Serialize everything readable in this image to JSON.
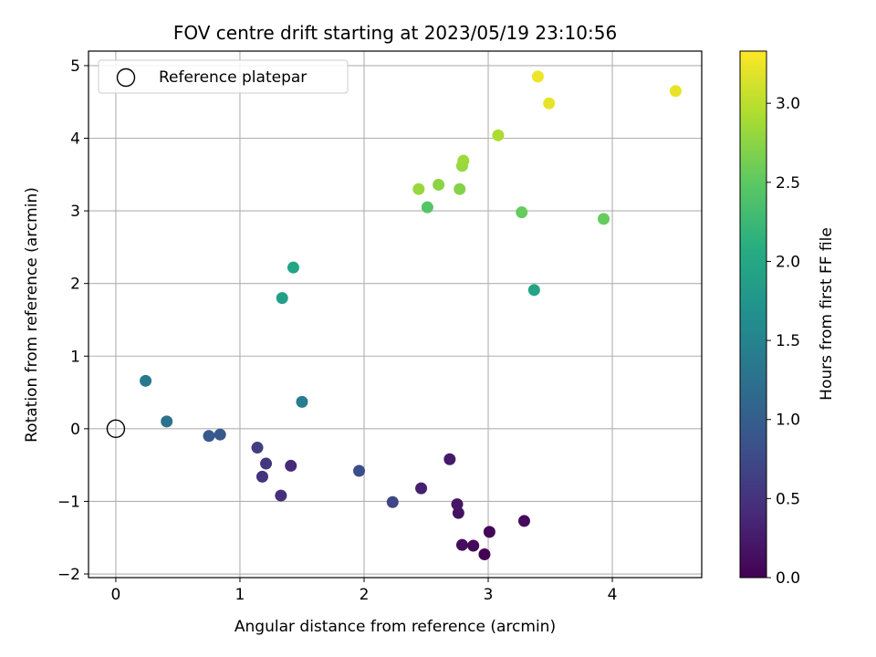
{
  "chart_data": {
    "type": "scatter",
    "title": "FOV centre drift starting at 2023/05/19 23:10:56",
    "xlabel": "Angular distance from reference (arcmin)",
    "ylabel": "Rotation from reference (arcmin)",
    "xlim": [
      -0.22,
      4.72
    ],
    "ylim": [
      -2.05,
      5.2
    ],
    "xticks": [
      0,
      1,
      2,
      3,
      4
    ],
    "xtick_labels": [
      "0",
      "1",
      "2",
      "3",
      "4"
    ],
    "yticks": [
      -2,
      -1,
      0,
      1,
      2,
      3,
      4,
      5
    ],
    "ytick_labels": [
      "−2",
      "−1",
      "0",
      "1",
      "2",
      "3",
      "4",
      "5"
    ],
    "grid": true,
    "legend": {
      "placement": "top-left",
      "entries": [
        {
          "label": "Reference platepar",
          "marker": "open-circle",
          "x": 0,
          "y": 0
        }
      ]
    },
    "colorbar": {
      "label": "Hours from first FF file",
      "range": [
        0.0,
        3.33
      ],
      "ticks": [
        0.0,
        0.5,
        1.0,
        1.5,
        2.0,
        2.5,
        3.0
      ],
      "tick_labels": [
        "0.0",
        "0.5",
        "1.0",
        "1.5",
        "2.0",
        "2.5",
        "3.0"
      ],
      "colormap": "viridis"
    },
    "series": [
      {
        "points": [
          {
            "x": 2.97,
            "y": -1.73,
            "c": 0.0
          },
          {
            "x": 3.01,
            "y": -1.42,
            "c": 0.05
          },
          {
            "x": 2.88,
            "y": -1.61,
            "c": 0.08
          },
          {
            "x": 2.79,
            "y": -1.6,
            "c": 0.12
          },
          {
            "x": 3.29,
            "y": -1.27,
            "c": 0.1
          },
          {
            "x": 2.76,
            "y": -1.16,
            "c": 0.16
          },
          {
            "x": 2.75,
            "y": -1.04,
            "c": 0.2
          },
          {
            "x": 2.69,
            "y": -0.42,
            "c": 0.24
          },
          {
            "x": 2.46,
            "y": -0.82,
            "c": 0.3
          },
          {
            "x": 1.41,
            "y": -0.51,
            "c": 0.4
          },
          {
            "x": 1.33,
            "y": -0.92,
            "c": 0.45
          },
          {
            "x": 1.18,
            "y": -0.66,
            "c": 0.5
          },
          {
            "x": 1.21,
            "y": -0.48,
            "c": 0.55
          },
          {
            "x": 1.14,
            "y": -0.26,
            "c": 0.62
          },
          {
            "x": 2.23,
            "y": -1.01,
            "c": 0.7
          },
          {
            "x": 1.96,
            "y": -0.58,
            "c": 0.8
          },
          {
            "x": 0.84,
            "y": -0.08,
            "c": 0.92
          },
          {
            "x": 0.75,
            "y": -0.1,
            "c": 0.95
          },
          {
            "x": 0.41,
            "y": 0.1,
            "c": 1.25
          },
          {
            "x": 0.24,
            "y": 0.66,
            "c": 1.35
          },
          {
            "x": 1.5,
            "y": 0.37,
            "c": 1.42
          },
          {
            "x": 1.34,
            "y": 1.8,
            "c": 1.88
          },
          {
            "x": 1.43,
            "y": 2.22,
            "c": 1.95
          },
          {
            "x": 3.37,
            "y": 1.91,
            "c": 1.95
          },
          {
            "x": 2.51,
            "y": 3.05,
            "c": 2.45
          },
          {
            "x": 3.27,
            "y": 2.98,
            "c": 2.55
          },
          {
            "x": 3.93,
            "y": 2.89,
            "c": 2.55
          },
          {
            "x": 2.77,
            "y": 3.3,
            "c": 2.7
          },
          {
            "x": 2.6,
            "y": 3.36,
            "c": 2.75
          },
          {
            "x": 2.44,
            "y": 3.3,
            "c": 2.82
          },
          {
            "x": 2.79,
            "y": 3.62,
            "c": 2.82
          },
          {
            "x": 2.8,
            "y": 3.69,
            "c": 2.85
          },
          {
            "x": 3.08,
            "y": 4.04,
            "c": 2.92
          },
          {
            "x": 3.4,
            "y": 4.85,
            "c": 3.25
          },
          {
            "x": 3.49,
            "y": 4.48,
            "c": 3.22
          },
          {
            "x": 4.51,
            "y": 4.65,
            "c": 3.22
          }
        ]
      }
    ]
  }
}
